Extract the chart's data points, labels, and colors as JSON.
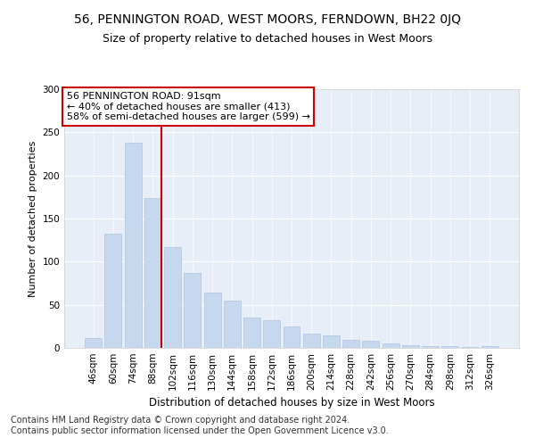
{
  "title": "56, PENNINGTON ROAD, WEST MOORS, FERNDOWN, BH22 0JQ",
  "subtitle": "Size of property relative to detached houses in West Moors",
  "xlabel": "Distribution of detached houses by size in West Moors",
  "ylabel": "Number of detached properties",
  "categories": [
    "46sqm",
    "60sqm",
    "74sqm",
    "88sqm",
    "102sqm",
    "116sqm",
    "130sqm",
    "144sqm",
    "158sqm",
    "172sqm",
    "186sqm",
    "200sqm",
    "214sqm",
    "228sqm",
    "242sqm",
    "256sqm",
    "270sqm",
    "284sqm",
    "298sqm",
    "312sqm",
    "326sqm"
  ],
  "values": [
    11,
    132,
    238,
    174,
    117,
    87,
    64,
    55,
    35,
    32,
    25,
    17,
    14,
    9,
    8,
    5,
    3,
    2,
    2,
    1,
    2
  ],
  "bar_color": "#c5d8ed",
  "bar_edge_color": "#b0c4de",
  "vline_color": "#cc0000",
  "annotation_text": "56 PENNINGTON ROAD: 91sqm\n← 40% of detached houses are smaller (413)\n58% of semi-detached houses are larger (599) →",
  "annotation_box_color": "#ffffff",
  "annotation_box_edge": "#cc0000",
  "footer_text": "Contains HM Land Registry data © Crown copyright and database right 2024.\nContains public sector information licensed under the Open Government Licence v3.0.",
  "plot_bg_color": "#e8eef8",
  "fig_bg_color": "#ffffff",
  "ylim": [
    0,
    300
  ],
  "title_fontsize": 10,
  "subtitle_fontsize": 9,
  "xlabel_fontsize": 8.5,
  "ylabel_fontsize": 8,
  "tick_fontsize": 7.5,
  "annotation_fontsize": 8,
  "footer_fontsize": 7
}
